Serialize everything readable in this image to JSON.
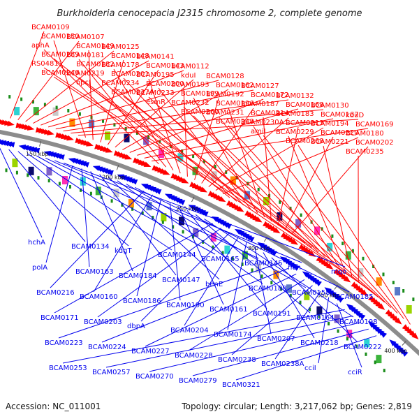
{
  "title": "Burkholderia cenocepacia J2315 chromosome 2, complete genome",
  "accession": "Accession: NC_011001",
  "summary": "Topology: circular; Length: 3,217,062 bp; Genes: 2,819",
  "colors": {
    "forward": "#ff0000",
    "reverse": "#0000ee",
    "backbone": "#8c8c8c",
    "tick": "#1a8c1a"
  },
  "ticks": [
    {
      "label": "150 kbp",
      "pos_kbp": 150
    },
    {
      "label": "200 kbp",
      "pos_kbp": 200
    },
    {
      "label": "250 kbp",
      "pos_kbp": 250
    },
    {
      "label": "300 kbp",
      "pos_kbp": 300
    },
    {
      "label": "350 kbp",
      "pos_kbp": 350
    },
    {
      "label": "400 kbp",
      "pos_kbp": 400
    }
  ],
  "forward_genes": [
    "BCAM0109",
    "BCAM0107",
    "BCAM0125",
    "BCAM0141",
    "BCAM0112",
    "BCAM0128",
    "BCAM0127",
    "BCAM0132",
    "BCAM0130",
    "kduD",
    "BCAM0150",
    "BCAM0149",
    "BCAM0148",
    "BCAM0143",
    "kduI",
    "BCAM0162",
    "BCAM0172",
    "BCAM0168",
    "BCAM0167",
    "BCAM0169",
    "aphA",
    "BCAM0181",
    "BCAM0178",
    "BCAM0195",
    "BCAM0193",
    "BCAM0192",
    "BCAM0187",
    "BCAM0183",
    "BCAM0194",
    "BCAM0180",
    "BCAM0189",
    "BCAM0182",
    "BCAM0201",
    "BCAM0200",
    "BCAM0199",
    "BCAM0196",
    "BCAM0214",
    "BCAM0213",
    "BCAM0220",
    "BCAM0202",
    "RS04811",
    "BCAM0219",
    "BCAM0234",
    "BCAM0233",
    "BCAM0232",
    "BCAM0231",
    "BCAM0230A",
    "BCAM0229",
    "BCAM0221",
    "BCAM0235",
    "BCAM0246",
    "opcI",
    "BCAM0237A",
    "esmR",
    "BCAM0260",
    "BCAM0248",
    "amiI",
    "BCAM0268"
  ],
  "reverse_genes": [
    "hchA",
    "BCAM0134",
    "kdgT",
    "BCAM0144",
    "BCAM0165",
    "BCAM0145",
    "ndh",
    "mqo",
    "polA",
    "BCAM0163",
    "BCAM0184",
    "BCAM0147",
    "benE",
    "BCAM0188",
    "BCAM0158",
    "BCAM0185",
    "BCAM0216",
    "BCAM0160",
    "BCAM0186",
    "BCAM0190",
    "BCAM0161",
    "BCAM0191",
    "BCAM0164",
    "BCAM0198",
    "BCAM0171",
    "BCAM0203",
    "dbpA",
    "BCAM0204",
    "BCAM0174",
    "BCAM0207",
    "BCAM0218",
    "BCAM0222",
    "BCAM0223",
    "BCAM0224",
    "BCAM0227",
    "BCAM0228",
    "BCAM0238",
    "BCAM0238A",
    "cciI",
    "cciR",
    "BCAM0253",
    "BCAM0257",
    "BCAM0270",
    "BCAM0279",
    "BCAM0321"
  ]
}
